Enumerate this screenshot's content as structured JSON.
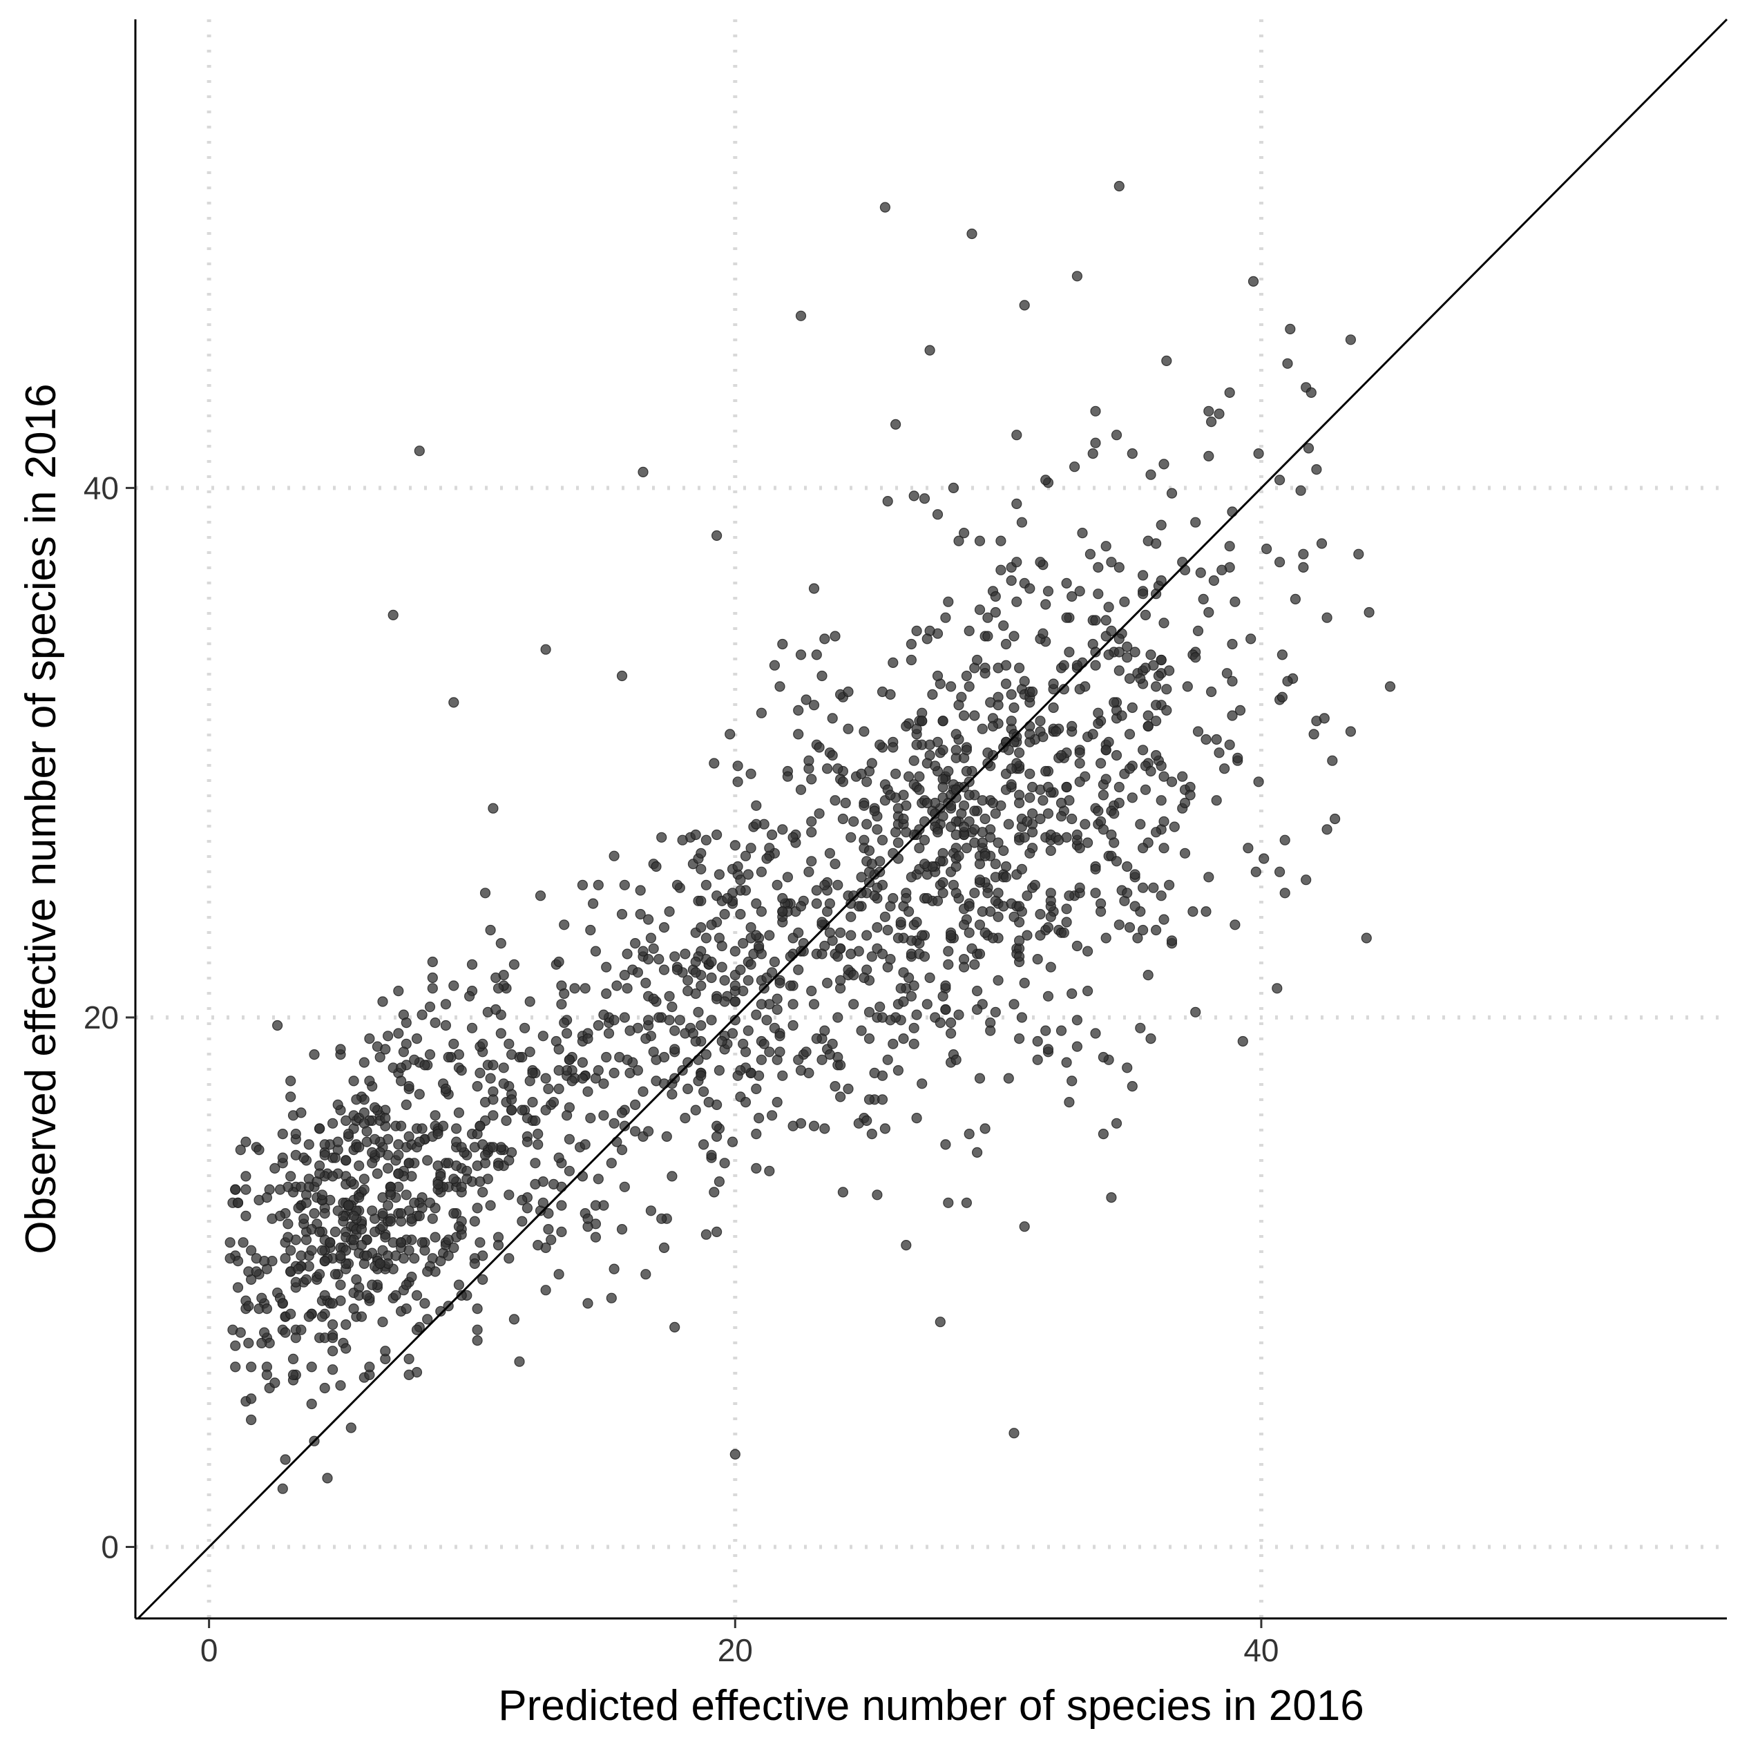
{
  "chart_data": {
    "type": "scatter",
    "xlabel": "Predicted effective number of species in 2016",
    "ylabel": "Observed effective number of species in 2016",
    "xlim": [
      -2.8,
      57.7
    ],
    "ylim": [
      -2.7,
      57.7
    ],
    "x_ticks": [
      0,
      20,
      40
    ],
    "y_ticks": [
      0,
      20,
      40
    ],
    "x_tick_labels": [
      "0",
      "20",
      "40"
    ],
    "y_tick_labels": [
      "0",
      "20",
      "40"
    ],
    "grid": "major, dotted",
    "reference_line": "y = x",
    "point_color": "#333333",
    "n_points": 2000,
    "points": {
      "x": [
        1.0,
        1.4,
        1.6,
        2.2,
        2.6,
        3.3,
        3.8,
        2.9,
        4.1,
        4.6,
        5.2,
        5.5,
        6.0,
        3.2,
        2.8,
        4.0,
        5.0,
        6.4,
        6.9,
        7.5,
        8.1,
        8.9,
        9.4,
        10.0,
        10.7,
        11.3,
        12.0,
        12.6,
        13.2,
        13.8,
        14.5,
        15.1,
        15.8,
        16.4,
        17.0,
        17.7,
        18.3,
        19.0,
        19.6,
        20.2,
        20.9,
        21.5,
        22.2,
        22.8,
        23.5,
        24.1,
        24.8,
        25.4,
        26.0,
        26.7,
        27.3,
        28.0,
        28.6,
        29.3,
        29.9,
        30.5,
        31.2,
        31.8,
        32.5,
        33.1,
        33.8,
        34.4,
        35.0,
        35.7,
        36.3,
        37.0,
        37.6,
        38.3,
        38.9,
        39.5,
        40.2,
        40.8,
        41.5,
        42.1,
        42.8,
        43.4,
        44.0,
        44.9,
        20.0,
        30.6,
        8.0,
        7.0,
        9.3,
        10.8,
        12.8,
        15.7,
        16.5,
        19.3,
        21.0,
        22.5,
        25.7,
        26.1,
        27.4,
        29.0,
        31.0,
        33.0,
        34.6,
        36.4,
        38.0,
        39.7
      ],
      "y": [
        6.8,
        5.5,
        4.8,
        7.9,
        9.6,
        8.2,
        11.0,
        12.6,
        10.2,
        13.1,
        14.0,
        12.1,
        15.3,
        6.3,
        2.2,
        4.0,
        6.1,
        9.8,
        13.6,
        16.7,
        13.2,
        17.5,
        11.7,
        19.6,
        15.1,
        21.1,
        16.5,
        24.6,
        19.1,
        18.5,
        23.3,
        21.9,
        13.6,
        24.8,
        20.6,
        19.5,
        26.8,
        22.0,
        14.5,
        17.0,
        23.0,
        26.2,
        19.7,
        25.5,
        18.8,
        29.3,
        24.2,
        27.6,
        30.4,
        33.5,
        25.4,
        29.1,
        32.1,
        26.1,
        35.3,
        28.7,
        31.9,
        34.2,
        27.8,
        30.1,
        36.0,
        28.0,
        32.8,
        26.6,
        34.9,
        37.2,
        30.8,
        28.2,
        34.1,
        26.4,
        37.7,
        33.7,
        39.9,
        31.2,
        27.5,
        30.8,
        23.0,
        32.5,
        3.5,
        4.3,
        41.4,
        35.2,
        31.9,
        27.9,
        33.9,
        32.9,
        40.6,
        38.2,
        24.0,
        46.5,
        50.6,
        42.4,
        45.2,
        49.6,
        46.9,
        48.0,
        51.4,
        44.8,
        42.9,
        47.8
      ]
    }
  }
}
